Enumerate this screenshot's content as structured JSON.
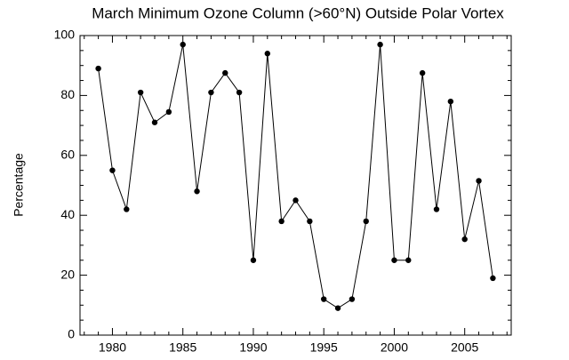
{
  "chart_data": {
    "type": "line",
    "title": "March Minimum Ozone Column (>60°N) Outside Polar Vortex",
    "y_label": "Percentage",
    "x": [
      1979,
      1980,
      1981,
      1982,
      1983,
      1984,
      1985,
      1986,
      1987,
      1988,
      1989,
      1990,
      1991,
      1992,
      1993,
      1994,
      1995,
      1996,
      1997,
      1998,
      1999,
      2000,
      2001,
      2002,
      2003,
      2004,
      2005,
      2006,
      2007
    ],
    "series": [
      {
        "color": "#000000",
        "values": [
          89,
          55,
          42,
          81,
          71,
          74.5,
          97,
          48,
          81,
          87.5,
          81,
          25,
          94,
          38,
          45,
          38,
          12,
          9,
          12,
          38,
          97,
          25,
          25,
          87.5,
          42,
          78,
          32,
          51.5,
          19
        ]
      }
    ],
    "xlim": [
      1977.7,
      2008.3
    ],
    "xticks": [
      1980,
      1985,
      1990,
      1995,
      2000,
      2005
    ],
    "ylim": [
      0,
      100
    ],
    "yticks": [
      0,
      20,
      40,
      60,
      80,
      100
    ]
  }
}
